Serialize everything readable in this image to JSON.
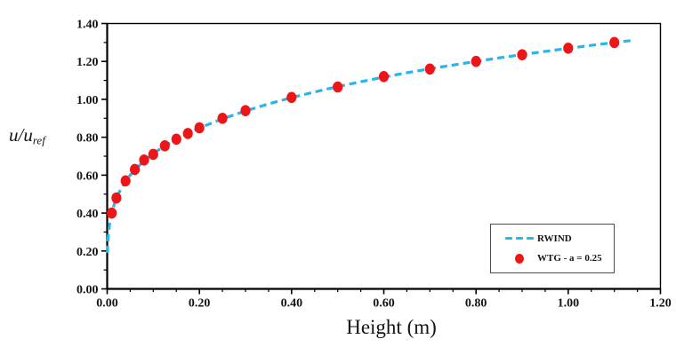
{
  "figure": {
    "xlabel": "Height (m)",
    "ylabel_base": "u/u",
    "ylabel_sub": "ref",
    "background_color": "#ffffff",
    "frame_color": "#000000",
    "text_color": "#151515"
  },
  "legend": {
    "border_color": "#4d4d4d",
    "entries": [
      {
        "label": "RWIND",
        "marker": "dashed-line",
        "color": "#29b4ea"
      },
      {
        "label": "WTG - a = 0.25",
        "marker": "dot",
        "color": "#ee1519"
      }
    ]
  },
  "chart_data": {
    "type": "line",
    "title": "",
    "xlabel": "Height (m)",
    "ylabel": "u/u_ref",
    "xlim": [
      0,
      1.2
    ],
    "ylim": [
      0,
      1.4
    ],
    "grid": false,
    "legend_position": "lower right",
    "x_major_ticks": [
      0,
      0.2,
      0.4,
      0.6,
      0.8,
      1.0,
      1.2
    ],
    "x_major_tick_labels": [
      "0.00",
      "0.20",
      "0.40",
      "0.60",
      "0.80",
      "1.00",
      "1.20"
    ],
    "x_minor_tick_step": 0.05,
    "y_major_ticks": [
      0,
      0.2,
      0.4,
      0.6,
      0.8,
      1.0,
      1.2,
      1.4
    ],
    "y_major_tick_labels": [
      "0.00",
      "0.20",
      "0.40",
      "0.60",
      "0.80",
      "1.00",
      "1.20",
      "1.40"
    ],
    "y_minor_tick_step": 0.1,
    "series": [
      {
        "name": "RWIND",
        "type": "line",
        "style": "dashed",
        "color": "#29b4ea",
        "x": [
          0.0005,
          0.001,
          0.002,
          0.003,
          0.005,
          0.007,
          0.01,
          0.015,
          0.02,
          0.025,
          0.03,
          0.04,
          0.05,
          0.06,
          0.08,
          0.1,
          0.125,
          0.15,
          0.175,
          0.2,
          0.25,
          0.3,
          0.35,
          0.4,
          0.45,
          0.5,
          0.55,
          0.6,
          0.65,
          0.7,
          0.75,
          0.8,
          0.85,
          0.9,
          0.95,
          1.0,
          1.05,
          1.1,
          1.14
        ],
        "y": [
          0.19,
          0.226,
          0.268,
          0.297,
          0.337,
          0.367,
          0.401,
          0.444,
          0.477,
          0.505,
          0.528,
          0.568,
          0.6,
          0.628,
          0.675,
          0.714,
          0.755,
          0.79,
          0.821,
          0.849,
          0.897,
          0.939,
          0.976,
          1.009,
          1.039,
          1.067,
          1.093,
          1.117,
          1.14,
          1.161,
          1.181,
          1.2,
          1.219,
          1.236,
          1.253,
          1.269,
          1.285,
          1.3,
          1.311
        ]
      },
      {
        "name": "WTG - a = 0.25",
        "type": "scatter",
        "color": "#ee1519",
        "x": [
          0.01,
          0.02,
          0.04,
          0.06,
          0.08,
          0.1,
          0.125,
          0.15,
          0.175,
          0.2,
          0.25,
          0.3,
          0.4,
          0.5,
          0.6,
          0.7,
          0.8,
          0.9,
          1.0,
          1.1
        ],
        "y": [
          0.4,
          0.48,
          0.57,
          0.63,
          0.68,
          0.71,
          0.755,
          0.79,
          0.82,
          0.85,
          0.9,
          0.94,
          1.01,
          1.065,
          1.12,
          1.16,
          1.2,
          1.235,
          1.27,
          1.3
        ]
      }
    ]
  }
}
